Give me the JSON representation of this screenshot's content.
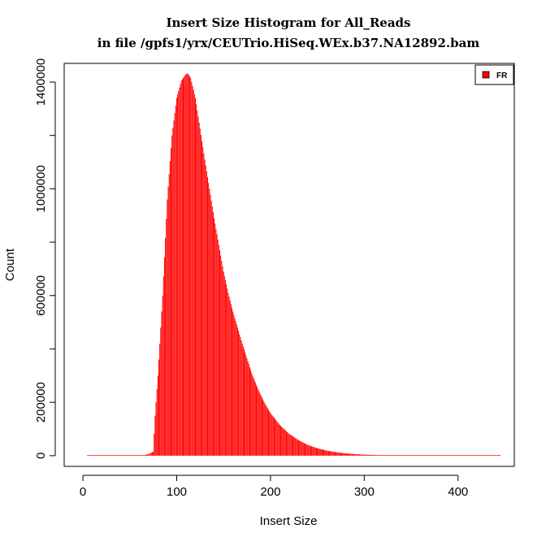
{
  "chart_data": {
    "type": "bar",
    "title": "Insert Size Histogram  for All_Reads",
    "subtitle": "in file /gpfs1/yrx/CEUTrio.HiSeq.WEx.b37.NA12892.bam",
    "xlabel": "Insert Size",
    "ylabel": "Count",
    "xlim": [
      -20,
      460
    ],
    "ylim": [
      -40000,
      1470000
    ],
    "x_ticks": [
      0,
      100,
      200,
      300,
      400
    ],
    "y_ticks": [
      0,
      200000,
      400000,
      600000,
      800000,
      1000000,
      1200000,
      1400000
    ],
    "y_tick_labels": [
      "0",
      "200000",
      "",
      "600000",
      "",
      "1000000",
      "",
      "1400000"
    ],
    "bar_color": "#ff0000",
    "grid": false,
    "legend_position": "top-right",
    "series": [
      {
        "name": "FR",
        "color": "#ff0000",
        "x": [
          5,
          15,
          25,
          35,
          45,
          55,
          65,
          70,
          75,
          77,
          80,
          85,
          90,
          95,
          100,
          105,
          110,
          112,
          115,
          120,
          125,
          130,
          135,
          140,
          145,
          150,
          155,
          160,
          165,
          170,
          175,
          180,
          185,
          190,
          195,
          200,
          210,
          220,
          230,
          240,
          250,
          260,
          270,
          280,
          290,
          300,
          310,
          320,
          330,
          340,
          350,
          360,
          370,
          380,
          390,
          400,
          410,
          420,
          430,
          440,
          445
        ],
        "y": [
          0,
          0,
          0,
          0,
          0,
          0,
          2000,
          6000,
          15000,
          150000,
          300000,
          600000,
          960000,
          1200000,
          1340000,
          1405000,
          1430000,
          1432000,
          1415000,
          1340000,
          1225000,
          1110000,
          1000000,
          890000,
          790000,
          690000,
          610000,
          540000,
          480000,
          420000,
          365000,
          310000,
          265000,
          225000,
          190000,
          160000,
          115000,
          82000,
          58000,
          40000,
          28000,
          19000,
          13000,
          9000,
          6000,
          4000,
          3000,
          2000,
          1500,
          1000,
          700,
          500,
          300,
          200,
          150,
          100,
          50,
          30,
          20,
          10,
          5
        ]
      }
    ]
  }
}
